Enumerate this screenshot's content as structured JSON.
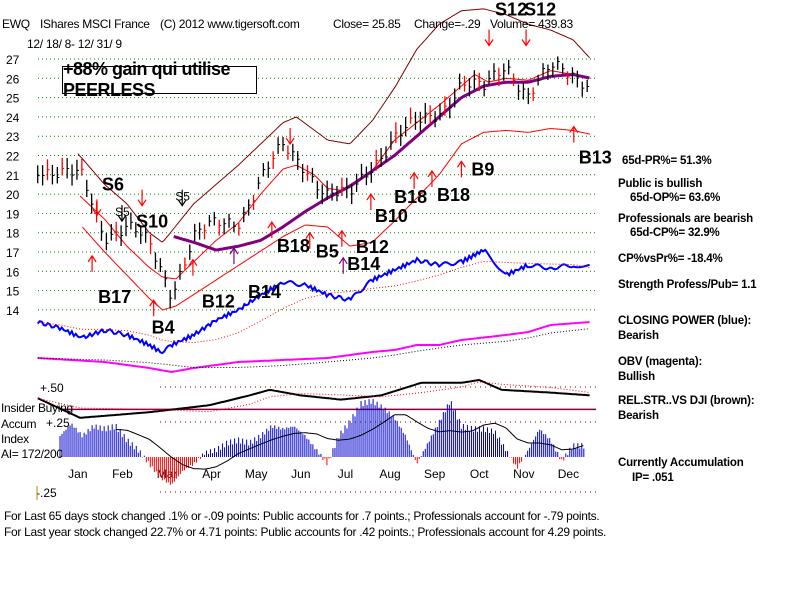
{
  "header": {
    "ticker": "EWQ",
    "name": "IShares MSCI France",
    "copyright": "(C) 2012 www.tigersoft.com",
    "close": "Close=  25.85",
    "change": "Change=-.29",
    "volume": "Volume= 439.83",
    "date_range": "12/ 18/ 8- 12/ 31/ 9"
  },
  "gain_banner": "+88% gain qui utilise PEERLESS",
  "right_panel": {
    "pr": "65d-PR%= 51.3%",
    "public": "Public is bullish",
    "op": "65d-OP%= 63.6%",
    "professionals": "Professionals are bearish",
    "cp": "65d-CP%= 32.9%",
    "cpvspr": "CP%vsPr%= -18.4%",
    "strength": "Strength Profess/Pub= 1.1",
    "closing_power": "CLOSING POWER (blue):",
    "closing_power_state": "Bearish",
    "obv": "OBV (magenta):",
    "obv_state": "Bullish",
    "relstr": "REL.STR..VS DJI (brown):",
    "relstr_state": "Bearish",
    "accum": "Currently Accumulation",
    "ip": "IP=  .051"
  },
  "left_panel": {
    "insider": "Insider Buying",
    "accum": "Accum",
    "index": "Index",
    "ai": "AI= 172/200"
  },
  "footer": {
    "line1": "For Last 65 days stock changed  .1% or -.09 points:  Public accounts for  .7 points.;  Professionals account for -.79 points.",
    "line2": "For Last year stock changed  22.7% or  4.71 points:  Public accounts for  .42 points.;  Professionals account for  4.29 points."
  },
  "colors": {
    "grid": "#008000",
    "price": "#000000",
    "up_bar": "#ff0000",
    "band_outer": "#800000",
    "band": "#ff0000",
    "ma": "#800080",
    "closing_power": "#0000ff",
    "obv": "#ff00ff",
    "relstr": "#000000",
    "ai_pos": "#0000cc",
    "ai_neg": "#ff0000",
    "signal": "#ff0000",
    "signal_alt": "#800080"
  },
  "chart_data": {
    "type": "line",
    "title": "IShares MSCI France (EWQ)",
    "x_unit": "months from Jan 1 2009",
    "month_labels": [
      "Jan",
      "Feb",
      "Mar",
      "Apr",
      "May",
      "Jun",
      "Jul",
      "Aug",
      "Sep",
      "Oct",
      "Nov",
      "Dec"
    ],
    "price_ticks": [
      "27",
      "26",
      "25",
      "24",
      "23",
      "22",
      "21",
      "20",
      "19",
      "18",
      "17",
      "16",
      "15",
      "14"
    ],
    "price_ylim": [
      14,
      27
    ],
    "ai_ticks": [
      "+.50",
      "+.25",
      "-.25"
    ],
    "ai_ylim": [
      -0.25,
      0.5
    ],
    "price_close": {
      "x": [
        -0.5,
        0,
        0.5,
        1,
        1.5,
        2,
        2.5,
        3,
        3.5,
        4,
        4.5,
        5,
        5.5,
        6,
        6.5,
        7,
        7.5,
        8,
        8.5,
        9,
        9.5,
        10,
        10.5,
        11,
        11.5,
        11.9
      ],
      "y": [
        21.5,
        21,
        20.8,
        18,
        18.3,
        17.3,
        15,
        17.8,
        18.3,
        18.7,
        20.8,
        22.3,
        21.5,
        20,
        19.8,
        21.6,
        23,
        23.5,
        24.3,
        25.8,
        25.3,
        26.8,
        25.2,
        26.4,
        26.3,
        25.85
      ]
    },
    "upper_band": {
      "x": [
        0.4,
        1,
        1.5,
        2,
        2.3,
        3,
        4,
        5,
        5.3,
        6,
        6.5,
        7,
        7.5,
        8,
        8.5,
        9,
        9.5,
        10,
        10.5,
        11,
        11.5,
        11.9
      ],
      "y": [
        22.1,
        20.5,
        19.5,
        18,
        17.5,
        19.5,
        21.5,
        23.7,
        24,
        22.8,
        22.6,
        23.8,
        25.5,
        27.5,
        28.8,
        29.5,
        29.6,
        29.3,
        28.8,
        28.5,
        28,
        27
      ]
    },
    "middle_band": {
      "x": [
        0.45,
        1,
        1.5,
        2,
        2.3,
        2.6,
        3,
        3.5,
        4,
        4.5,
        5,
        5.3,
        5.7,
        6,
        6.3,
        7,
        7.5,
        8,
        8.5,
        9,
        9.3,
        9.6,
        10,
        10.5,
        11,
        11.5,
        11.9
      ],
      "y": [
        19.9,
        18.7,
        17.3,
        16.2,
        15.7,
        15.6,
        16.5,
        17.6,
        18.5,
        20,
        21.3,
        21.5,
        21,
        20.3,
        20.2,
        21.2,
        22.8,
        23.7,
        24.6,
        25.6,
        26.2,
        25.8,
        26,
        25.9,
        26.4,
        26.2,
        26
      ]
    },
    "lower_band": {
      "x": [
        0.5,
        1,
        1.5,
        2,
        2.3,
        2.6,
        3,
        4,
        5,
        5.5,
        6,
        6.5,
        7,
        7.5,
        8,
        8.5,
        9,
        9.5,
        10,
        10.5,
        11,
        11.5,
        11.9
      ],
      "y": [
        18.3,
        17,
        15.8,
        14.6,
        14,
        14.2,
        14.8,
        16.3,
        17.8,
        18.4,
        18.3,
        17.3,
        17.5,
        18.6,
        19.8,
        21,
        22.6,
        23.2,
        23.3,
        23.2,
        23.4,
        23.3,
        23.1
      ]
    },
    "moving_average": {
      "x": [
        2.55,
        3,
        3.5,
        4,
        4.5,
        5,
        5.5,
        6,
        6.5,
        7,
        7.5,
        8,
        8.5,
        9,
        9.5,
        10,
        10.5,
        11,
        11.5,
        11.9
      ],
      "y": [
        17.8,
        17.5,
        17.1,
        17.3,
        17.6,
        18.3,
        19.1,
        19.8,
        20.4,
        21.2,
        22,
        23,
        24,
        25,
        25.6,
        25.8,
        25.8,
        26.1,
        26.2,
        26
      ]
    },
    "closing_power": {
      "x": [
        -0.5,
        0,
        0.5,
        1,
        1.5,
        2,
        2.3,
        2.5,
        3,
        3.5,
        4,
        4.5,
        5,
        5.5,
        6,
        6.5,
        7,
        7.5,
        8,
        8.5,
        9,
        9.5,
        10,
        10.5,
        11,
        11.5,
        11.9
      ],
      "y": [
        38,
        32,
        22,
        30,
        25,
        15,
        7,
        15,
        25,
        40,
        50,
        65,
        78,
        75,
        65,
        60,
        80,
        90,
        100,
        95,
        98,
        110,
        85,
        95,
        92,
        95,
        94
      ]
    },
    "obv": {
      "x": [
        -0.5,
        1,
        2,
        2.5,
        3,
        4,
        5,
        6,
        7,
        7.5,
        8,
        8.5,
        9,
        10,
        10.5,
        11,
        11.9
      ],
      "y": [
        22,
        18,
        12,
        8,
        12,
        18,
        20,
        22,
        28,
        30,
        35,
        35,
        40,
        45,
        48,
        55,
        58
      ]
    },
    "relative_strength": {
      "x": [
        -0.5,
        0.45,
        2,
        3.35,
        4.25,
        4.7,
        5.4,
        6.3,
        7.2,
        8.1,
        9,
        9.4,
        9.9,
        11,
        11.9
      ],
      "y": [
        0.42,
        0.28,
        0.32,
        0.37,
        0.44,
        0.48,
        0.44,
        0.41,
        0.44,
        0.53,
        0.53,
        0.55,
        0.48,
        0.46,
        0.44
      ]
    },
    "insider_line": 0.34,
    "accumulation_index": {
      "x_start": 0,
      "x_step": 0.25,
      "values": [
        0.15,
        0.24,
        0.15,
        0.22,
        0.2,
        0.22,
        0.12,
        0.05,
        -0.05,
        -0.15,
        -0.2,
        -0.1,
        -0.05,
        0.03,
        0.05,
        0.1,
        0.12,
        0.1,
        0.15,
        0.22,
        0.2,
        0.22,
        0.15,
        0.05,
        -0.05,
        0.15,
        0.25,
        0.38,
        0.4,
        0.35,
        0.28,
        0.15,
        -0.05,
        0.1,
        0.25,
        0.4,
        0.22,
        0.2,
        0.2,
        0.18,
        0.05,
        -0.08,
        0.05,
        0.2,
        0.12,
        -0.03,
        0.08,
        0.08
      ]
    },
    "signals": [
      {
        "label": "B17",
        "x": 0.72,
        "price": 16.8,
        "dir": "up",
        "kind": "buy"
      },
      {
        "label": "S6",
        "x": 0.83,
        "price": 18.9,
        "dir": "down",
        "kind": "sell"
      },
      {
        "label": "S5",
        "x": 1.39,
        "price": 18.6,
        "dir": "down",
        "kind": "minor"
      },
      {
        "label": "S10",
        "x": 1.84,
        "price": 19.4,
        "dir": "down",
        "kind": "sell"
      },
      {
        "label": "B4",
        "x": 2.1,
        "price": 14.5,
        "dir": "up",
        "kind": "buy"
      },
      {
        "label": "S5",
        "x": 2.74,
        "price": 19.4,
        "dir": "down",
        "kind": "minor"
      },
      {
        "label": "B12",
        "x": 2.98,
        "price": 16.6,
        "dir": "up",
        "kind": "buy"
      },
      {
        "label": "B14",
        "x": 3.9,
        "price": 17.2,
        "dir": "up",
        "kind": "alt"
      },
      {
        "label": "B18",
        "x": 4.75,
        "price": 18.55,
        "dir": "up",
        "kind": "buy"
      },
      {
        "label": "",
        "x": 5.16,
        "price": 22.6,
        "dir": "down",
        "kind": "sell"
      },
      {
        "label": "B5",
        "x": 5.6,
        "price": 18.0,
        "dir": "up",
        "kind": "buy"
      },
      {
        "label": "B12",
        "x": 6.32,
        "price": 18.1,
        "dir": "up",
        "kind": "buy"
      },
      {
        "label": "B14",
        "x": 6.35,
        "price": 16.7,
        "dir": "up",
        "kind": "alt"
      },
      {
        "label": "B10",
        "x": 6.97,
        "price": 20.0,
        "dir": "up",
        "kind": "buy"
      },
      {
        "label": "B18",
        "x": 7.94,
        "price": 21.1,
        "dir": "up",
        "kind": "buy"
      },
      {
        "label": "B18",
        "x": 8.34,
        "price": 21.2,
        "dir": "up",
        "kind": "buy"
      },
      {
        "label": "B9",
        "x": 9.0,
        "price": 21.7,
        "dir": "up",
        "kind": "buy"
      },
      {
        "label": "S12",
        "x": 9.62,
        "price": 27.7,
        "dir": "down",
        "kind": "sell"
      },
      {
        "label": "S12",
        "x": 10.45,
        "price": 27.7,
        "dir": "down",
        "kind": "sell"
      },
      {
        "label": "B13",
        "x": 11.52,
        "price": 23.5,
        "dir": "up",
        "kind": "buy"
      }
    ]
  }
}
